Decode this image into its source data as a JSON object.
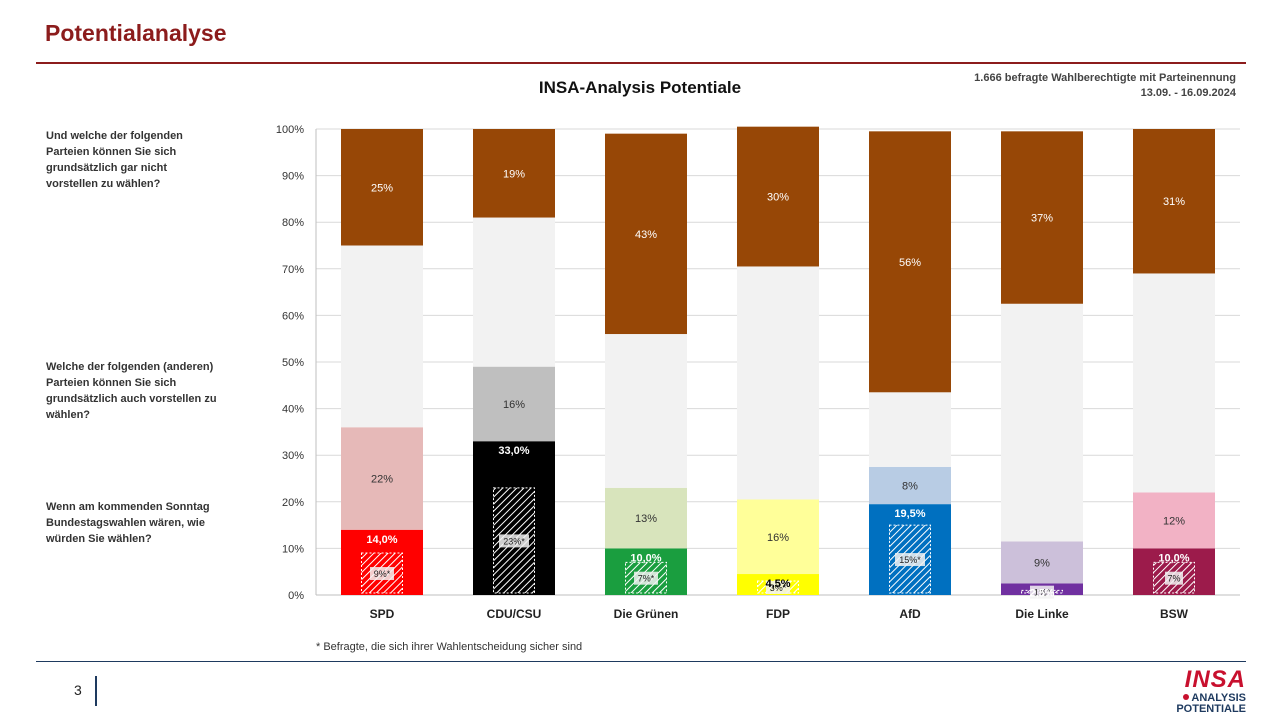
{
  "page": {
    "title": "Potentialanalyse",
    "page_number": "3",
    "footnote": "* Befragte, die sich ihrer Wahlentscheidung sicher sind",
    "logo": {
      "name": "INSA",
      "line1": "ANALYSIS",
      "line2": "POTENTIALE"
    }
  },
  "header": {
    "chart_title": "INSA-Analysis Potentiale",
    "meta_line1": "1.666 befragte Wahlberechtigte mit Parteinennung",
    "meta_line2": "13.09. - 16.09.2024"
  },
  "questions": {
    "q1": "Und welche der folgenden Parteien können Sie sich grundsätzlich gar nicht vorstellen zu wählen?",
    "q2": "Welche der folgenden (anderen) Parteien können Sie sich grundsätzlich auch vorstellen zu wählen?",
    "q3": "Wenn am kommenden Sonntag Bundestagswahlen wären, wie würden Sie wählen?"
  },
  "chart_data": {
    "type": "bar",
    "stacked": true,
    "categories": [
      "SPD",
      "CDU/CSU",
      "Die Grünen",
      "FDP",
      "AfD",
      "Die Linke",
      "BSW"
    ],
    "ylim": [
      0,
      100
    ],
    "yticks": [
      "0%",
      "10%",
      "20%",
      "30%",
      "40%",
      "50%",
      "60%",
      "70%",
      "80%",
      "90%",
      "100%"
    ],
    "grid": true,
    "vote": [
      14.0,
      33.0,
      10.0,
      4.5,
      19.5,
      2.5,
      10.0
    ],
    "vote_labels": [
      "14,0%",
      "33,0%",
      "10,0%",
      "4,5%",
      "19,5%",
      "2,5%",
      "10,0%"
    ],
    "sure_voters": [
      9,
      23,
      7,
      3,
      15,
      1,
      7
    ],
    "sure_labels": [
      "9%*",
      "23%*",
      "7%*",
      "3%*",
      "15%*",
      "1%*",
      "7%"
    ],
    "potential": [
      22,
      16,
      13,
      16,
      8,
      9,
      12
    ],
    "potential_labels": [
      "22%",
      "16%",
      "13%",
      "16%",
      "8%",
      "9%",
      "12%"
    ],
    "undecided": [
      39,
      32,
      33,
      50,
      16,
      51,
      47
    ],
    "never": [
      25,
      19,
      43,
      30,
      56,
      37,
      31
    ],
    "never_labels": [
      "25%",
      "19%",
      "43%",
      "30%",
      "56%",
      "37%",
      "31%"
    ],
    "colors": {
      "vote": [
        "#ff0000",
        "#000000",
        "#1a9e3f",
        "#ffff00",
        "#0070c0",
        "#7030a0",
        "#9c1b4b"
      ],
      "potential": [
        "#e6b9b8",
        "#bfbfbf",
        "#d8e4bc",
        "#ffff99",
        "#b8cce4",
        "#ccc0da",
        "#f2b2c5"
      ],
      "undecided": "#f2f2f2",
      "never": "#974706"
    }
  }
}
